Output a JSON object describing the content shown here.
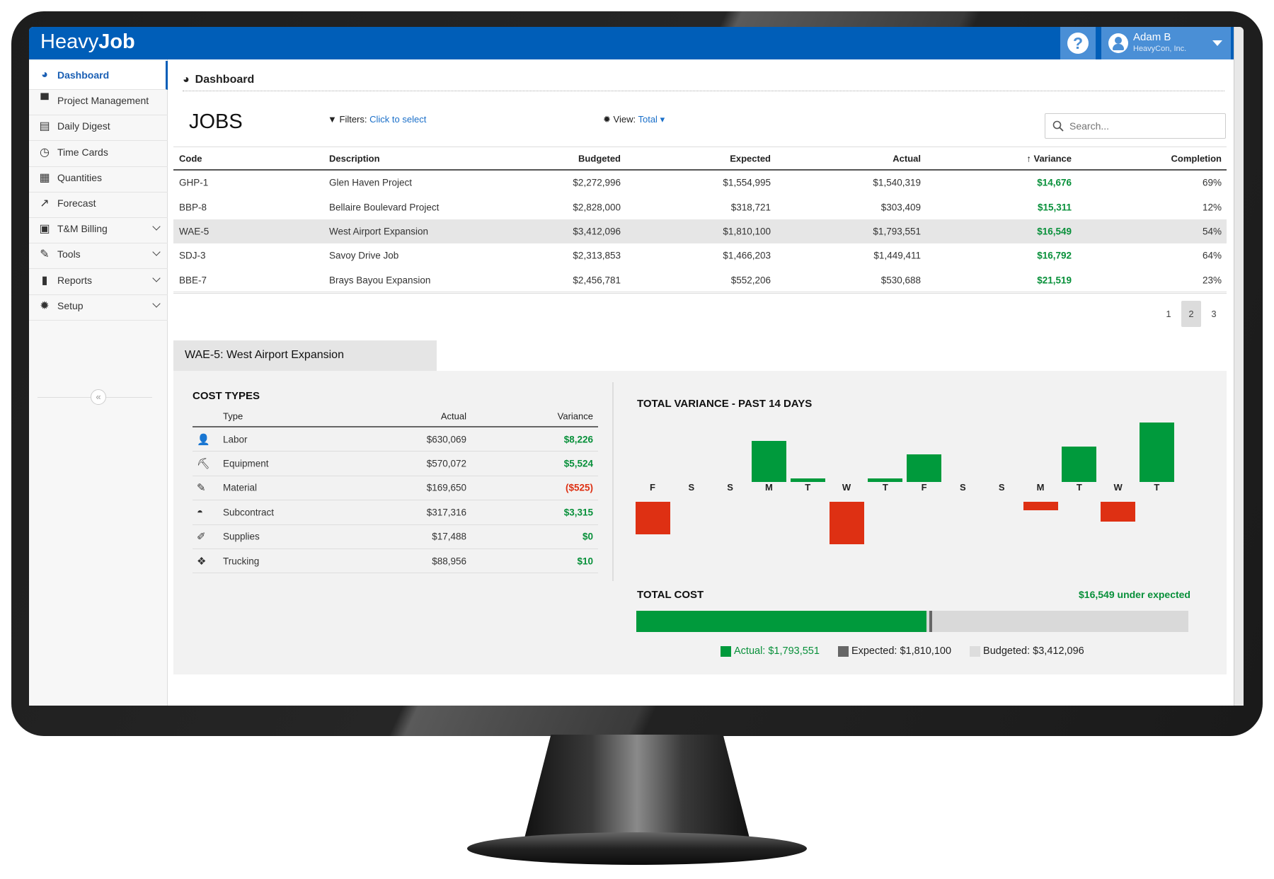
{
  "app": {
    "logo_light": "Heavy",
    "logo_bold": "Job",
    "help_label": "?"
  },
  "user": {
    "name": "Adam B",
    "company": "HeavyCon, Inc."
  },
  "sidebar": {
    "items": [
      {
        "label": "Dashboard",
        "icon": "dashboard-icon",
        "glyph": "◕",
        "active": true
      },
      {
        "label": "Project Management",
        "icon": "briefcase-icon",
        "glyph": "▀"
      },
      {
        "label": "Daily Digest",
        "icon": "newspaper-icon",
        "glyph": "▤"
      },
      {
        "label": "Time Cards",
        "icon": "clock-icon",
        "glyph": "◷"
      },
      {
        "label": "Quantities",
        "icon": "calculator-icon",
        "glyph": "▦"
      },
      {
        "label": "Forecast",
        "icon": "line-chart-icon",
        "glyph": "↗"
      },
      {
        "label": "T&M Billing",
        "icon": "money-icon",
        "glyph": "▣",
        "expand": true
      },
      {
        "label": "Tools",
        "icon": "wrench-icon",
        "glyph": "✎",
        "expand": true
      },
      {
        "label": "Reports",
        "icon": "bar-chart-icon",
        "glyph": "▮",
        "expand": true
      },
      {
        "label": "Setup",
        "icon": "gear-icon",
        "glyph": "✹",
        "expand": true
      }
    ],
    "collapse_label": "«"
  },
  "breadcrumb": {
    "title": "Dashboard"
  },
  "jobs": {
    "title": "JOBS",
    "filters_label": "Filters:",
    "filters_link": "Click to select",
    "view_label": "View:",
    "view_value": "Total",
    "search_placeholder": "Search...",
    "columns": [
      "Code",
      "Description",
      "Budgeted",
      "Expected",
      "Actual",
      "Variance",
      "Completion"
    ],
    "sort_indicator": "↑",
    "rows": [
      {
        "code": "GHP-1",
        "description": "Glen Haven Project",
        "budgeted": "$2,272,996",
        "expected": "$1,554,995",
        "actual": "$1,540,319",
        "variance": "$14,676",
        "completion": "69%"
      },
      {
        "code": "BBP-8",
        "description": "Bellaire Boulevard Project",
        "budgeted": "$2,828,000",
        "expected": "$318,721",
        "actual": "$303,409",
        "variance": "$15,311",
        "completion": "12%"
      },
      {
        "code": "WAE-5",
        "description": "West Airport Expansion",
        "budgeted": "$3,412,096",
        "expected": "$1,810,100",
        "actual": "$1,793,551",
        "variance": "$16,549",
        "completion": "54%",
        "selected": true
      },
      {
        "code": "SDJ-3",
        "description": "Savoy Drive Job",
        "budgeted": "$2,313,853",
        "expected": "$1,466,203",
        "actual": "$1,449,411",
        "variance": "$16,792",
        "completion": "64%"
      },
      {
        "code": "BBE-7",
        "description": "Brays Bayou Expansion",
        "budgeted": "$2,456,781",
        "expected": "$552,206",
        "actual": "$530,688",
        "variance": "$21,519",
        "completion": "23%"
      }
    ],
    "pages": [
      "1",
      "2",
      "3"
    ],
    "current_page": "2"
  },
  "detail": {
    "tab_title": "WAE-5: West Airport Expansion",
    "cost_types": {
      "title": "COST TYPES",
      "columns": [
        "Type",
        "Actual",
        "Variance"
      ],
      "rows": [
        {
          "icon": "person-icon",
          "glyph": "👤",
          "type": "Labor",
          "actual": "$630,069",
          "variance": "$8,226",
          "negative": false
        },
        {
          "icon": "excavator-icon",
          "glyph": "⛏",
          "type": "Equipment",
          "actual": "$570,072",
          "variance": "$5,524",
          "negative": false
        },
        {
          "icon": "material-icon",
          "glyph": "✎",
          "type": "Material",
          "actual": "$169,650",
          "variance": "($525)",
          "negative": true
        },
        {
          "icon": "hardhat-icon",
          "glyph": "◓",
          "type": "Subcontract",
          "actual": "$317,316",
          "variance": "$3,315",
          "negative": false
        },
        {
          "icon": "supplies-icon",
          "glyph": "✐",
          "type": "Supplies",
          "actual": "$17,488",
          "variance": "$0",
          "negative": false
        },
        {
          "icon": "trucking-icon",
          "glyph": "❖",
          "type": "Trucking",
          "actual": "$88,956",
          "variance": "$10",
          "negative": false
        }
      ]
    },
    "total_cost": {
      "title": "TOTAL COST",
      "summary": "$16,549 under expected",
      "actual": 1793551,
      "expected": 1810100,
      "budgeted": 3412096,
      "legend": {
        "actual": "Actual: $1,793,551",
        "expected": "Expected: $1,810,100",
        "budgeted": "Budgeted: $3,412,096"
      }
    }
  },
  "colors": {
    "brand": "#005eb8",
    "positive": "#009a3c",
    "negative": "#de3013",
    "expected": "#666666",
    "budgeted": "#d9d9d9"
  },
  "chart_data": {
    "type": "bar",
    "title": "TOTAL VARIANCE - PAST 14 DAYS",
    "categories": [
      "F",
      "S",
      "S",
      "M",
      "T",
      "W",
      "T",
      "F",
      "S",
      "S",
      "M",
      "T",
      "W",
      "T"
    ],
    "values": [
      -1400,
      0,
      0,
      1760,
      140,
      -1800,
      140,
      1180,
      0,
      0,
      -350,
      1520,
      -850,
      2540
    ],
    "xlabel": "",
    "ylabel": "",
    "grid": false
  }
}
